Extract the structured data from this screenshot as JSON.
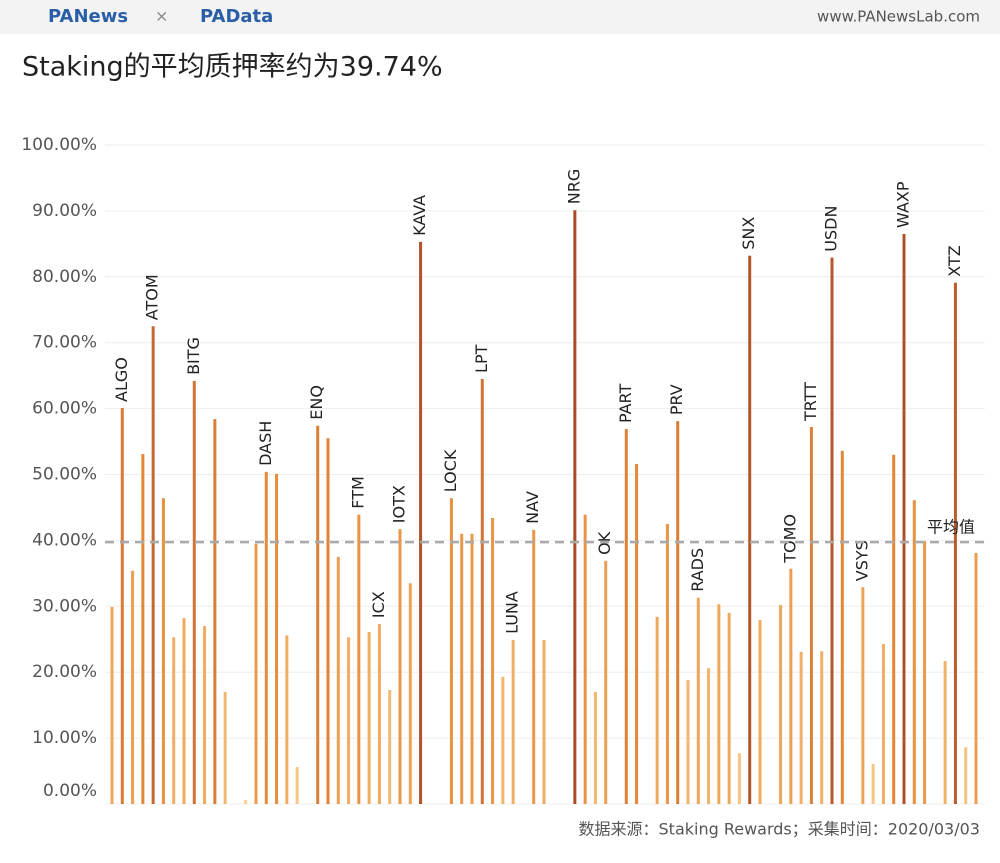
{
  "header": {
    "brand1": "PANews",
    "separator": "×",
    "brand2": "PAData",
    "site": "www.PANewsLab.com"
  },
  "chart_data": {
    "type": "bar",
    "title": "Staking的平均质押率约为39.74%",
    "source": "数据来源：Staking Rewards；采集时间：2020/03/03",
    "categories": [
      null,
      "ALGO",
      null,
      null,
      "ATOM",
      null,
      null,
      null,
      "BITG",
      null,
      null,
      null,
      null,
      null,
      null,
      "DASH",
      null,
      null,
      null,
      null,
      "ENQ",
      null,
      null,
      null,
      "FTM",
      null,
      "ICX",
      null,
      "IOTX",
      null,
      "KAVA",
      null,
      null,
      "LOCK",
      null,
      null,
      "LPT",
      null,
      null,
      "LUNA",
      null,
      "NAV",
      null,
      null,
      null,
      "NRG",
      null,
      null,
      "OK",
      null,
      "PART",
      null,
      null,
      null,
      null,
      "PRV",
      null,
      "RADS",
      null,
      null,
      null,
      null,
      "SNX",
      null,
      null,
      null,
      "TOMO",
      null,
      "TRTT",
      null,
      "USDN",
      null,
      null,
      "VSYS",
      null,
      null,
      null,
      "WAXP",
      null,
      null,
      null,
      null,
      "XTZ",
      null,
      null
    ],
    "values": [
      29.9,
      60.1,
      35.4,
      53.1,
      72.5,
      46.4,
      25.3,
      28.2,
      64.2,
      27.0,
      58.4,
      17.0,
      null,
      0.6,
      39.5,
      50.4,
      50.1,
      25.6,
      5.6,
      null,
      57.4,
      55.5,
      37.5,
      25.3,
      43.9,
      26.1,
      27.3,
      17.3,
      41.7,
      33.5,
      85.3,
      null,
      null,
      46.4,
      41.0,
      41.0,
      64.5,
      43.4,
      19.3,
      24.9,
      null,
      41.6,
      24.9,
      null,
      null,
      90.1,
      43.9,
      17.0,
      36.9,
      null,
      56.9,
      51.6,
      null,
      28.4,
      42.5,
      58.1,
      18.8,
      31.3,
      20.6,
      30.3,
      29.0,
      7.7,
      83.2,
      27.9,
      null,
      30.2,
      35.7,
      23.1,
      57.2,
      23.2,
      82.9,
      53.6,
      null,
      32.9,
      6.1,
      24.3,
      53.0,
      86.5,
      46.1,
      39.9,
      null,
      21.7,
      79.1,
      8.6,
      38.1
    ],
    "color_scale": [
      "#f8cf8e",
      "#e68c3c",
      "#9b3a22"
    ],
    "ylim": [
      0,
      100
    ],
    "yticks": [
      {
        "value": 0,
        "label": "0.00%"
      },
      {
        "value": 10,
        "label": "10.00%"
      },
      {
        "value": 20,
        "label": "20.00%"
      },
      {
        "value": 30,
        "label": "30.00%"
      },
      {
        "value": 40,
        "label": "40.00%"
      },
      {
        "value": 50,
        "label": "50.00%"
      },
      {
        "value": 60,
        "label": "60.00%"
      },
      {
        "value": 70,
        "label": "70.00%"
      },
      {
        "value": 80,
        "label": "80.00%"
      },
      {
        "value": 90,
        "label": "90.00%"
      },
      {
        "value": 100,
        "label": "100.00%"
      }
    ],
    "grid": true,
    "average": 39.74,
    "average_label": "平均值"
  }
}
